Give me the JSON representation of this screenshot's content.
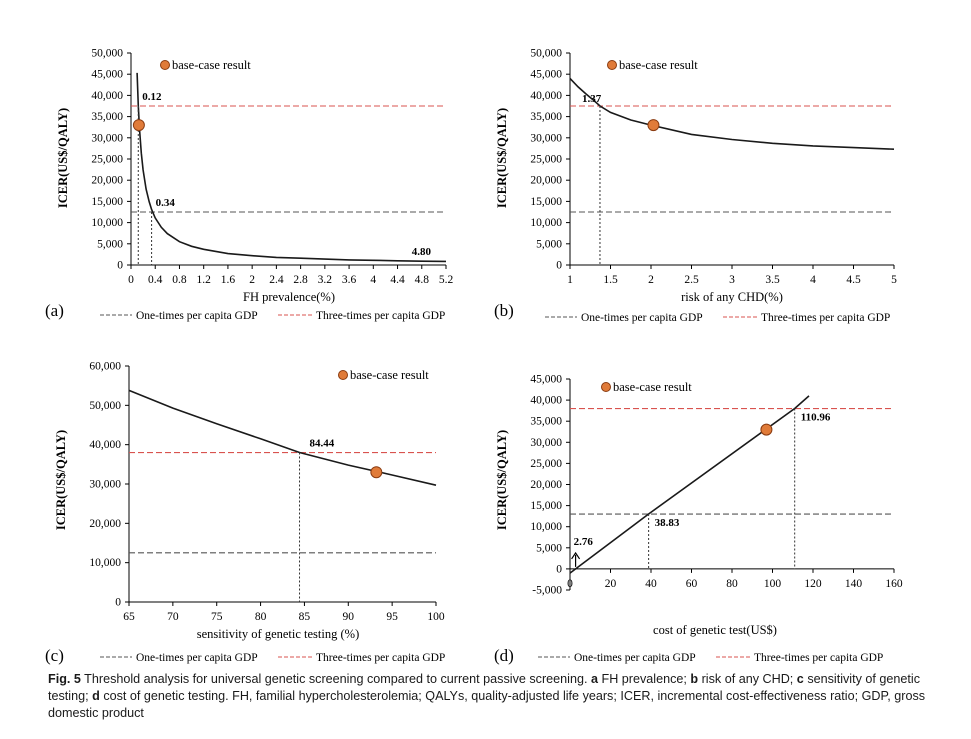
{
  "caption": {
    "fig_label": "Fig. 5",
    "text": "Threshold analysis for universal genetic screening compared to current passive screening.",
    "a_key": "a",
    "a_text": "FH prevalence;",
    "b_key": "b",
    "b_text": "risk of any CHD;",
    "c_key": "c",
    "c_text": "sensitivity of genetic testing;",
    "d_key": "d",
    "d_text": "cost of genetic testing. FH, familial hypercholesterolemia; QALYs, quality-adjusted life years; ICER, incremental cost-effectiveness ratio; GDP, gross domestic product"
  },
  "colors": {
    "curve": "#1a1a1a",
    "one_times_line": "#555555",
    "three_times_line": "#d9534f",
    "marker_fill": "#e07b39",
    "marker_stroke": "#8a3b10"
  },
  "chart_data": [
    {
      "panel": "(a)",
      "type": "line",
      "xlabel": "FH prevalence(%)",
      "ylabel": "ICER(US$/QALY)",
      "xlim": [
        0,
        5.2
      ],
      "ylim": [
        0,
        50000
      ],
      "xticks": [
        "0",
        "0.4",
        "0.8",
        "1.2",
        "1.6",
        "2",
        "2.4",
        "2.8",
        "3.2",
        "3.6",
        "4",
        "4.4",
        "4.8",
        "5.2"
      ],
      "yticks": [
        "0",
        "5,000",
        "10,000",
        "15,000",
        "20,000",
        "25,000",
        "30,000",
        "35,000",
        "40,000",
        "45,000",
        "50,000"
      ],
      "curve": {
        "x": [
          0.1,
          0.12,
          0.14,
          0.17,
          0.2,
          0.25,
          0.3,
          0.34,
          0.4,
          0.5,
          0.6,
          0.8,
          1.0,
          1.2,
          1.6,
          2.0,
          2.4,
          2.8,
          3.2,
          3.6,
          4.0,
          4.4,
          4.8,
          5.2
        ],
        "y": [
          45300,
          37500,
          32100,
          26400,
          22400,
          17900,
          14900,
          13100,
          11100,
          8900,
          7400,
          5500,
          4400,
          3700,
          2700,
          2200,
          1800,
          1600,
          1400,
          1200,
          1100,
          1000,
          900,
          850
        ]
      },
      "thresholds": {
        "one_times": 12500,
        "three_times": 37500
      },
      "base_case": {
        "x": 0.13,
        "y": 33000
      },
      "legend_marker": "base-case result",
      "annotations": [
        {
          "text": "0.12",
          "x": 0.12,
          "y": 37500
        },
        {
          "text": "0.34",
          "x": 0.34,
          "y": 12500
        },
        {
          "text": "4.80",
          "x": 4.8,
          "y": 900
        }
      ],
      "legend": [
        "One-times per capita GDP",
        "Three-times per capita GDP"
      ]
    },
    {
      "panel": "(b)",
      "type": "line",
      "xlabel": "risk of any CHD(%)",
      "ylabel": "ICER(US$/QALY)",
      "xlim": [
        1,
        5
      ],
      "ylim": [
        0,
        50000
      ],
      "xticks": [
        "1",
        "1.5",
        "2",
        "2.5",
        "3",
        "3.5",
        "4",
        "4.5",
        "5"
      ],
      "yticks": [
        "0",
        "5,000",
        "10,000",
        "15,000",
        "20,000",
        "25,000",
        "30,000",
        "35,000",
        "40,000",
        "45,000",
        "50,000"
      ],
      "curve": {
        "x": [
          1.0,
          1.1,
          1.2,
          1.3,
          1.37,
          1.5,
          1.75,
          2.0,
          2.5,
          3.0,
          3.5,
          4.0,
          4.5,
          5.0
        ],
        "y": [
          44000,
          42000,
          40300,
          38700,
          37500,
          36000,
          34200,
          33000,
          30800,
          29600,
          28700,
          28100,
          27700,
          27300
        ]
      },
      "thresholds": {
        "one_times": 12500,
        "three_times": 37500
      },
      "base_case": {
        "x": 2.03,
        "y": 33000
      },
      "legend_marker": "base-case result",
      "annotations": [
        {
          "text": "1.37",
          "x": 1.37,
          "y": 37500
        }
      ],
      "legend": [
        "One-times per capita GDP",
        "Three-times per capita GDP"
      ]
    },
    {
      "panel": "(c)",
      "type": "line",
      "xlabel": "sensitivity of genetic testing (%)",
      "ylabel": "ICER(US$/QALY)",
      "xlim": [
        65,
        100
      ],
      "ylim": [
        0,
        60000
      ],
      "xticks": [
        "65",
        "70",
        "75",
        "80",
        "85",
        "90",
        "95",
        "100"
      ],
      "yticks": [
        "0",
        "10,000",
        "20,000",
        "30,000",
        "40,000",
        "50,000",
        "60,000"
      ],
      "curve": {
        "x": [
          65,
          70,
          75,
          80,
          84.44,
          90,
          95,
          100
        ],
        "y": [
          53800,
          49300,
          45300,
          41500,
          38000,
          34800,
          32300,
          29700
        ]
      },
      "thresholds": {
        "one_times": 12500,
        "three_times": 38000
      },
      "base_case": {
        "x": 93.2,
        "y": 33000
      },
      "legend_marker": "base-case result",
      "annotations": [
        {
          "text": "84.44",
          "x": 84.44,
          "y": 38000
        }
      ],
      "legend": [
        "One-times per capita GDP",
        "Three-times per capita GDP"
      ]
    },
    {
      "panel": "(d)",
      "type": "line",
      "xlabel": "cost of genetic test(US$)",
      "ylabel": "ICER(US$/QALY)",
      "xlim": [
        0,
        160
      ],
      "ylim": [
        -5000,
        45000
      ],
      "xticks": [
        "0",
        "20",
        "40",
        "60",
        "80",
        "100",
        "120",
        "140",
        "160"
      ],
      "yticks": [
        "-5,000",
        "0",
        "5,000",
        "10,000",
        "15,000",
        "20,000",
        "25,000",
        "30,000",
        "35,000",
        "40,000",
        "45,000"
      ],
      "curve": {
        "x": [
          0,
          2.76,
          38.83,
          110.96,
          118
        ],
        "y": [
          -1000,
          0,
          13000,
          38000,
          41000
        ]
      },
      "thresholds": {
        "one_times": 13000,
        "three_times": 38000
      },
      "base_case": {
        "x": 97,
        "y": 33000
      },
      "legend_marker": "base-case result",
      "annotations": [
        {
          "text": "110.96",
          "x": 110.96,
          "y": 38000
        },
        {
          "text": "38.83",
          "x": 38.83,
          "y": 13000
        },
        {
          "text": "2.76",
          "x": 2.76,
          "y": 0
        }
      ],
      "legend": [
        "One-times per capita GDP",
        "Three-times per capita GDP"
      ]
    }
  ]
}
